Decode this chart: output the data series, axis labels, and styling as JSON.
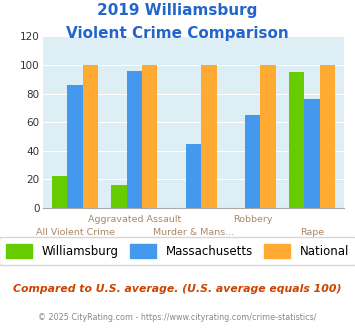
{
  "title_line1": "2019 Williamsburg",
  "title_line2": "Violent Crime Comparison",
  "categories": [
    "All Violent Crime",
    "Aggravated Assault",
    "Murder & Mans...",
    "Robbery",
    "Rape"
  ],
  "williamsburg": [
    22,
    16,
    0,
    0,
    95
  ],
  "massachusetts": [
    86,
    96,
    45,
    65,
    76
  ],
  "national": [
    100,
    100,
    100,
    100,
    100
  ],
  "colors": {
    "williamsburg": "#66cc00",
    "massachusetts": "#4499ee",
    "national": "#ffaa33"
  },
  "ylim": [
    0,
    120
  ],
  "yticks": [
    0,
    20,
    40,
    60,
    80,
    100,
    120
  ],
  "plot_bg": "#ddeef5",
  "title_color": "#2266cc",
  "axis_label_color_top": "#aa8866",
  "axis_label_color_bottom": "#aa8866",
  "legend_labels": [
    "Williamsburg",
    "Massachusetts",
    "National"
  ],
  "footer_text": "Compared to U.S. average. (U.S. average equals 100)",
  "footer_sub": "© 2025 CityRating.com - https://www.cityrating.com/crime-statistics/",
  "footer_color": "#cc4400",
  "footer_sub_color": "#888888",
  "top_row_labels": {
    "1": "Aggravated Assault",
    "3": "Robbery"
  },
  "bottom_row_labels": {
    "0": "All Violent Crime",
    "2": "Murder & Mans...",
    "4": "Rape"
  }
}
